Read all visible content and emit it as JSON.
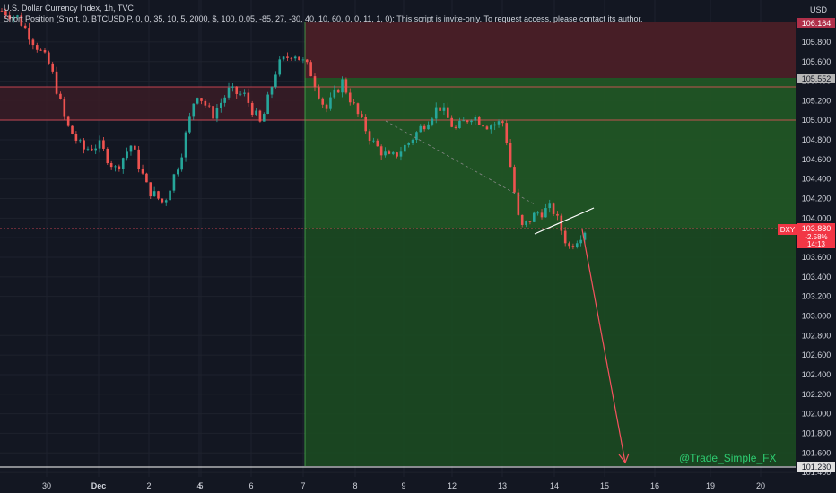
{
  "header": {
    "title": "U.S. Dollar Currency Index, 1h, TVC",
    "strategy": "Short Position (Short, 0, BTCUSD.P, 0, 0, 35, 10, 5, 2000, $, 100, 0.05, -85, 27, -30, 40, 10, 60, 0, 0, 11, 1, 0): This script is invite-only. To request access, please contact its author."
  },
  "currency_label": "USD",
  "watermark": "@Trade_Simple_FX",
  "colors": {
    "background": "#131722",
    "up": "#26a69a",
    "down": "#ef5350",
    "stop_zone": "#4a1f27",
    "target_zone": "#1b4a22",
    "level_line": "#f7525f"
  },
  "price_tag": {
    "symbol": "DXY",
    "price": "103.880",
    "change": "-2.58%",
    "countdown": "14:13"
  },
  "position": {
    "entry": "103.880",
    "stop": "106.164",
    "target": "101.230",
    "level_105552": "105.552"
  },
  "chart_data": {
    "type": "candlestick",
    "title": "U.S. Dollar Currency Index, 1h, TVC",
    "y_ticks": [
      "106.000",
      "105.800",
      "105.600",
      "105.400",
      "105.200",
      "105.000",
      "104.800",
      "104.600",
      "104.400",
      "104.200",
      "104.000",
      "103.800",
      "103.600",
      "103.400",
      "103.200",
      "103.000",
      "102.800",
      "102.600",
      "102.400",
      "102.200",
      "102.000",
      "101.800",
      "101.600",
      "101.400"
    ],
    "x_ticks": [
      "30",
      "Dec",
      "2",
      "4",
      "5",
      "6",
      "7",
      "8",
      "9",
      "12",
      "13",
      "14",
      "15",
      "16",
      "19",
      "20"
    ],
    "ylim": [
      101.19,
      106.23
    ],
    "close_path": [
      [
        0,
        106.12
      ],
      [
        1,
        106.05
      ],
      [
        2,
        105.8
      ],
      [
        3,
        105.55
      ],
      [
        4,
        104.95
      ],
      [
        5,
        104.7
      ],
      [
        6,
        104.75
      ],
      [
        7,
        104.5
      ],
      [
        8,
        104.75
      ],
      [
        9,
        104.3
      ],
      [
        10,
        104.15
      ],
      [
        11,
        104.6
      ],
      [
        12,
        105.3
      ],
      [
        13,
        105.05
      ],
      [
        14,
        105.3
      ],
      [
        15,
        105.25
      ],
      [
        16,
        104.95
      ],
      [
        17,
        105.55
      ],
      [
        18,
        105.7
      ],
      [
        19,
        105.52
      ],
      [
        20,
        105.1
      ],
      [
        21,
        105.4
      ],
      [
        22,
        105.05
      ],
      [
        23,
        104.75
      ],
      [
        24,
        104.6
      ],
      [
        25,
        104.75
      ],
      [
        26,
        104.95
      ],
      [
        27,
        105.15
      ],
      [
        28,
        104.9
      ],
      [
        29,
        105.05
      ],
      [
        30,
        104.95
      ],
      [
        31,
        104.98
      ],
      [
        32,
        103.88
      ],
      [
        33,
        104.05
      ],
      [
        34,
        104.1
      ],
      [
        35,
        103.7
      ],
      [
        36,
        103.88
      ]
    ],
    "stop_level": 106.164,
    "entry_level": 103.88,
    "target_level": 101.23,
    "level_105552": 105.552,
    "level_105490": 105.49,
    "level_105080": 105.08
  }
}
